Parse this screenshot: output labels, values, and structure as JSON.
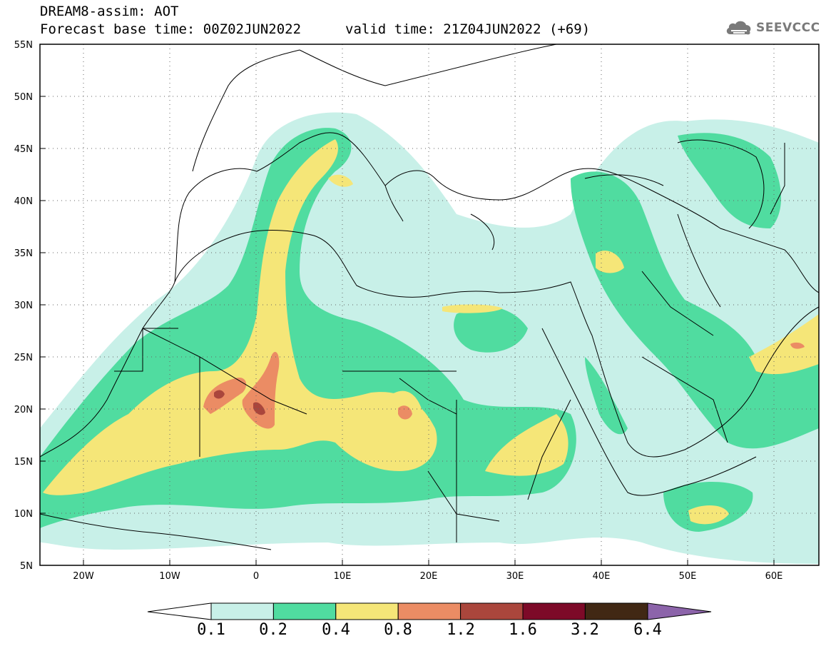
{
  "header": {
    "title": "DREAM8-assim: AOT",
    "base_time": "Forecast base time: 00Z02JUN2022",
    "valid_time": "valid time: 21Z04JUN2022 (+69)"
  },
  "logo": {
    "text": "SEEVCCC",
    "icon": "cloud-logo-icon"
  },
  "map": {
    "lat_labels": [
      "55N",
      "50N",
      "45N",
      "40N",
      "35N",
      "30N",
      "25N",
      "20N",
      "15N",
      "10N",
      "5N"
    ],
    "lon_labels": [
      "20W",
      "10W",
      "0",
      "10E",
      "20E",
      "30E",
      "40E",
      "50E",
      "60E"
    ],
    "grid": "dotted"
  },
  "colorbar": {
    "labels": [
      "0.1",
      "0.2",
      "0.4",
      "0.8",
      "1.2",
      "1.6",
      "3.2",
      "6.4"
    ],
    "colors": [
      "#c8f0e8",
      "#50dca0",
      "#f5e678",
      "#eb8c64",
      "#aa463c",
      "#7d0a28",
      "#412814",
      "#8c64aa"
    ]
  }
}
